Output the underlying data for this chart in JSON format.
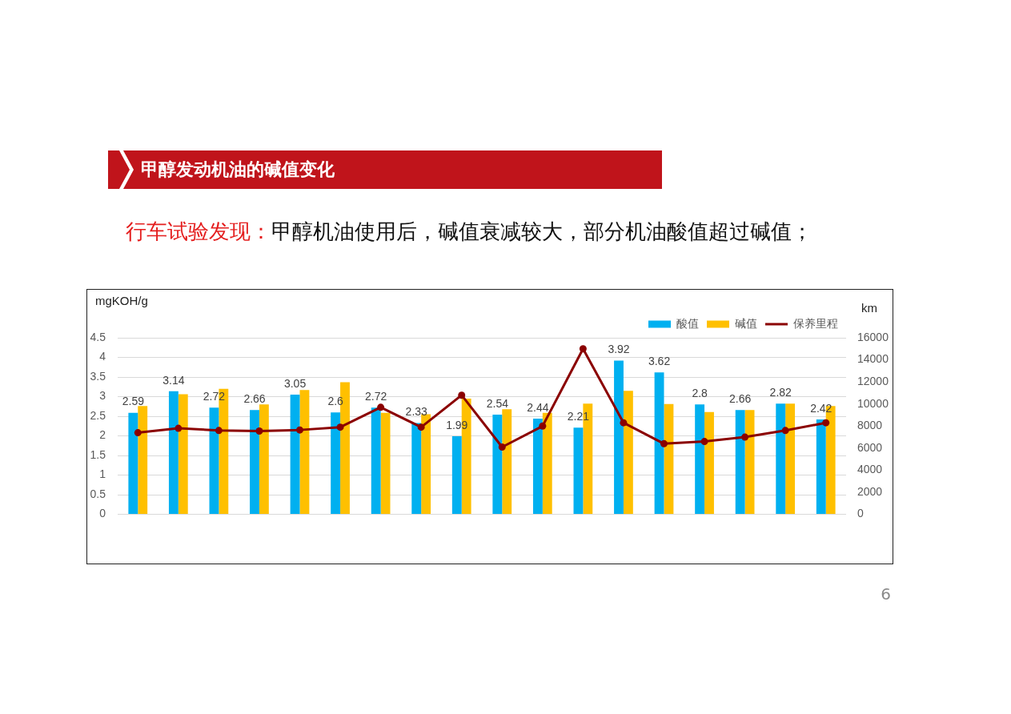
{
  "chart_data": {
    "type": "bar",
    "title": "甲醇发动机油的碱值变化",
    "subtitle": "行车试验发现：甲醇机油使用后，碱值衰减较大，部分机油酸值超过碱值；",
    "ylabel": "mgKOH/g",
    "y2label": "km",
    "annotations": [
      "6"
    ],
    "categories": [
      null,
      null,
      null,
      null,
      null,
      null,
      null,
      null,
      null,
      null,
      null,
      null,
      null,
      null,
      null,
      null,
      null,
      null
    ],
    "series": [
      {
        "name": "酸值",
        "color": "#00b0f0",
        "values": [
          2.59,
          3.14,
          2.72,
          2.66,
          3.05,
          2.6,
          2.72,
          2.33,
          1.99,
          2.54,
          2.44,
          2.21,
          3.92,
          3.62,
          2.8,
          2.66,
          2.82,
          2.42
        ],
        "value_labels": [
          "2.59",
          "3.14",
          "2.72",
          "2.66",
          "3.05",
          "2.6",
          "2.72",
          "2.33",
          "1.99",
          "2.54",
          "2.44",
          "2.21",
          "3.92",
          "3.62",
          "2.8",
          "2.66",
          "2.82",
          "2.42"
        ]
      },
      {
        "name": "碱值",
        "color": "#ffc000",
        "values": [
          2.76,
          3.06,
          3.2,
          2.8,
          3.17,
          3.37,
          2.59,
          2.55,
          2.95,
          2.68,
          2.59,
          2.82,
          3.15,
          2.81,
          2.61,
          2.66,
          2.82,
          2.76
        ]
      },
      {
        "name": "保养里程",
        "type": "line",
        "axis": "y2",
        "color": "#8b0000",
        "marker": "circle",
        "values": [
          7400,
          7800,
          7600,
          7550,
          7650,
          7900,
          9700,
          7900,
          10800,
          6100,
          8000,
          15000,
          8300,
          6400,
          6600,
          7000,
          7600,
          8300
        ]
      }
    ],
    "ylim": [
      0,
      4.5
    ],
    "yticks": [
      0,
      0.5,
      1,
      1.5,
      2,
      2.5,
      3,
      3.5,
      4,
      4.5
    ],
    "y2lim": [
      0,
      16000
    ],
    "y2ticks": [
      0,
      2000,
      4000,
      6000,
      8000,
      10000,
      12000,
      14000,
      16000
    ],
    "grid": "y",
    "legend": "top right"
  }
}
